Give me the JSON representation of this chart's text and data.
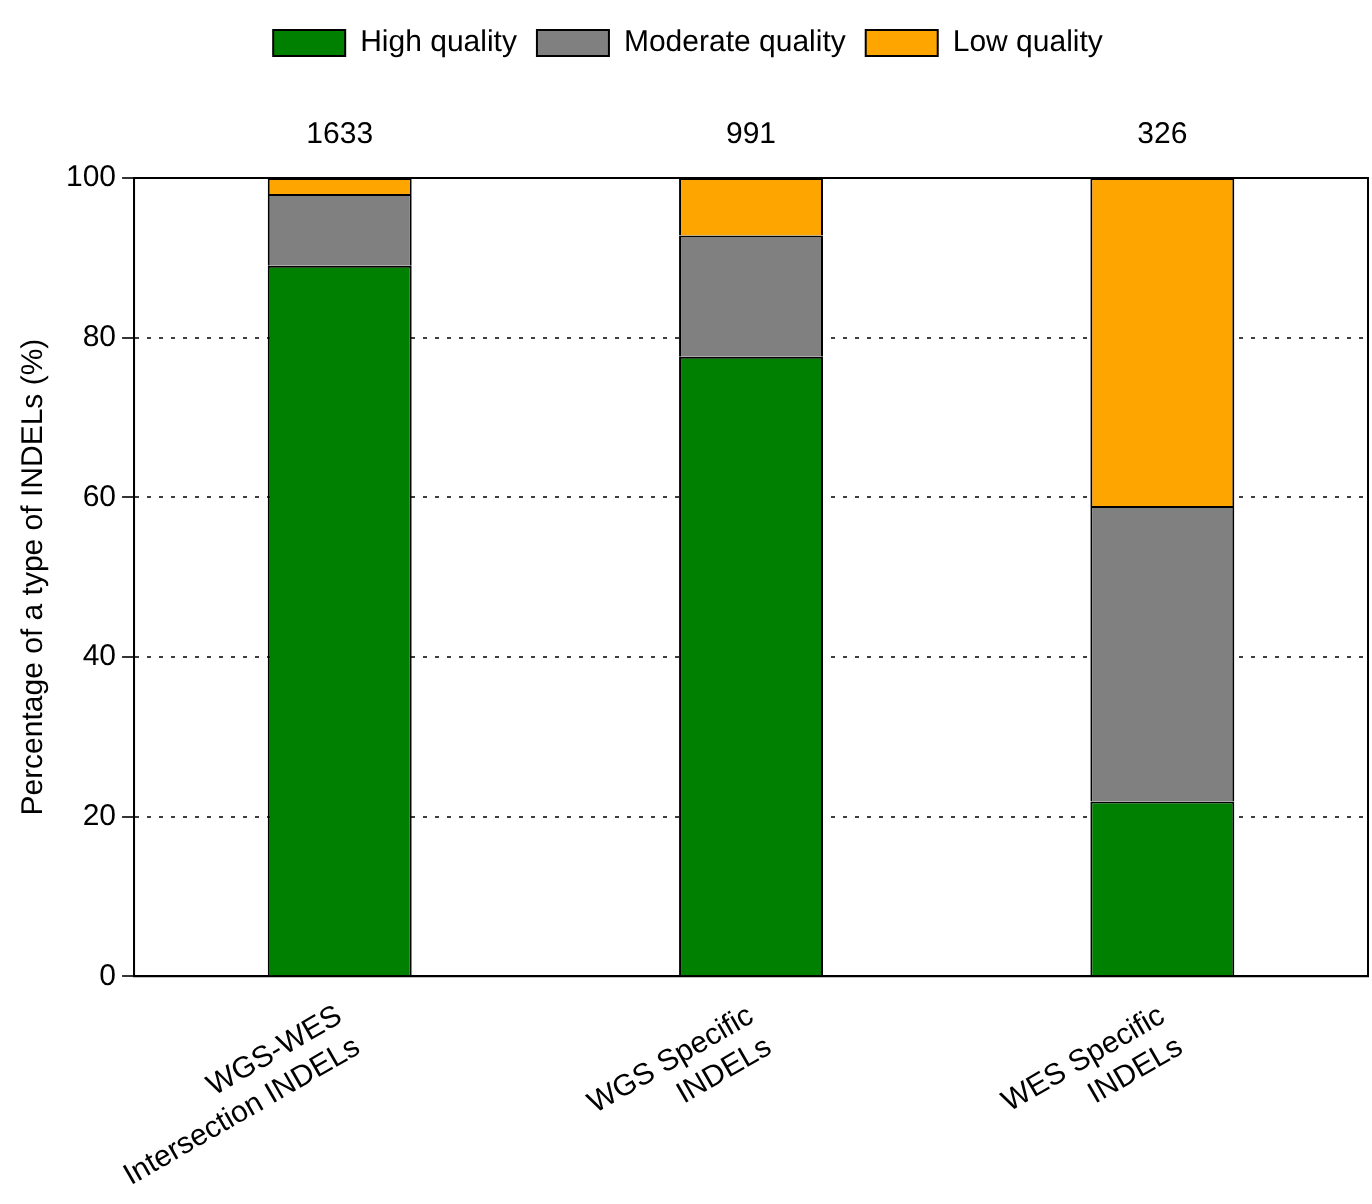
{
  "chart_data": {
    "type": "bar",
    "stacked": true,
    "categories": [
      "WGS-WES\nIntersection INDELs",
      "WGS Specific\nINDELs",
      "WES Specific\nINDELs"
    ],
    "series": [
      {
        "name": "High quality",
        "color": "#008000",
        "values": [
          89,
          77.6,
          21.9
        ]
      },
      {
        "name": "Moderate quality",
        "color": "#808080",
        "values": [
          9,
          15.2,
          37
        ]
      },
      {
        "name": "Low quality",
        "color": "#ffa500",
        "values": [
          2,
          7.2,
          41.1
        ]
      }
    ],
    "ylabel": "Percentage of a type of INDELs (%)",
    "ylim": [
      0,
      100
    ],
    "yticks": [
      0,
      20,
      40,
      60,
      80,
      100
    ],
    "annotations": [
      "1633",
      "991",
      "326"
    ],
    "grid": "y",
    "legend": "top"
  }
}
